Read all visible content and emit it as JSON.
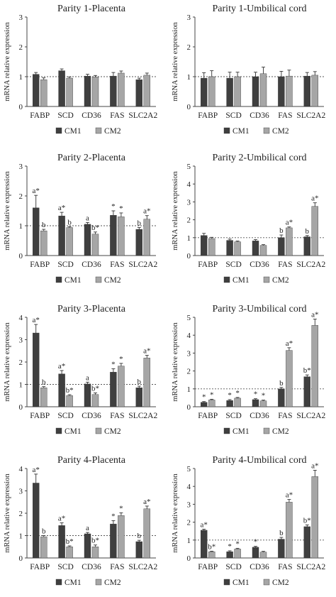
{
  "colors": {
    "CM1": "#3f3f3f",
    "CM2": "#a6a6a6",
    "axis": "#444444",
    "reference": "#555555"
  },
  "chart_data": [
    {
      "type": "bar",
      "title": "Parity 1-Placenta",
      "ylabel": "mRNA relative expression",
      "ylim": [
        0,
        3
      ],
      "yticks": [
        "0",
        "1",
        "2",
        "3"
      ],
      "reference_line": 1,
      "categories": [
        "FABP",
        "SCD",
        "CD36",
        "FAS",
        "SLC2A2"
      ],
      "legend": "bottom",
      "series": [
        {
          "name": "CM1",
          "values": [
            1.08,
            1.2,
            1.02,
            1.02,
            0.9
          ],
          "errors": [
            0.06,
            0.06,
            0.06,
            0.12,
            0.05
          ],
          "labels": [
            "",
            "",
            "",
            "",
            ""
          ]
        },
        {
          "name": "CM2",
          "values": [
            0.9,
            0.95,
            0.99,
            1.12,
            1.05
          ],
          "errors": [
            0.06,
            0.04,
            0.05,
            0.07,
            0.07
          ],
          "labels": [
            "",
            "",
            "",
            "",
            ""
          ]
        }
      ]
    },
    {
      "type": "bar",
      "title": "Parity 1-Umbilical cord",
      "ylabel": "mRNA relative expression",
      "ylim": [
        0,
        3
      ],
      "yticks": [
        "0",
        "1",
        "2",
        "3"
      ],
      "reference_line": 1,
      "categories": [
        "FABP",
        "SCD",
        "CD36",
        "FAS",
        "SLC2A2"
      ],
      "legend": "bottom",
      "series": [
        {
          "name": "CM1",
          "values": [
            0.95,
            0.95,
            1.0,
            1.0,
            1.02
          ],
          "errors": [
            0.18,
            0.2,
            0.15,
            0.18,
            0.12
          ],
          "labels": [
            "",
            "",
            "",
            "",
            ""
          ]
        },
        {
          "name": "CM2",
          "values": [
            1.0,
            1.0,
            1.1,
            1.02,
            1.05
          ],
          "errors": [
            0.2,
            0.15,
            0.22,
            0.2,
            0.12
          ],
          "labels": [
            "",
            "",
            "",
            "",
            ""
          ]
        }
      ]
    },
    {
      "type": "bar",
      "title": "Parity 2-Placenta",
      "ylabel": "mRNA relative expression",
      "ylim": [
        0,
        3
      ],
      "yticks": [
        "0",
        "1",
        "2",
        "3"
      ],
      "reference_line": 1,
      "categories": [
        "FABP",
        "SCD",
        "CD36",
        "FAS",
        "SLC2A2"
      ],
      "legend": "bottom",
      "series": [
        {
          "name": "CM1",
          "values": [
            1.6,
            1.33,
            1.05,
            1.35,
            0.88
          ],
          "errors": [
            0.42,
            0.12,
            0.06,
            0.15,
            0.06
          ],
          "labels": [
            "a*",
            "a*",
            "a",
            "*",
            "b"
          ]
        },
        {
          "name": "CM2",
          "values": [
            0.83,
            0.94,
            0.72,
            1.3,
            1.22
          ],
          "errors": [
            0.05,
            0.03,
            0.07,
            0.13,
            0.12
          ],
          "labels": [
            "b",
            "b",
            "b*",
            "*",
            "a*"
          ]
        }
      ]
    },
    {
      "type": "bar",
      "title": "Parity 2-Umbilical cord",
      "ylabel": "mRNA relative expression",
      "ylim": [
        0,
        5
      ],
      "yticks": [
        "0",
        "1",
        "2",
        "3",
        "4",
        "5"
      ],
      "reference_line": 1,
      "categories": [
        "FABP",
        "SCD",
        "CD36",
        "FAS",
        "SLC2A2"
      ],
      "legend": "bottom",
      "series": [
        {
          "name": "CM1",
          "values": [
            1.12,
            0.85,
            0.82,
            1.0,
            1.05
          ],
          "errors": [
            0.12,
            0.07,
            0.07,
            0.15,
            0.07
          ],
          "labels": [
            "",
            "",
            "",
            "b",
            "b"
          ]
        },
        {
          "name": "CM2",
          "values": [
            0.95,
            0.77,
            0.57,
            1.55,
            2.75
          ],
          "errors": [
            0.07,
            0.04,
            0.04,
            0.05,
            0.2
          ],
          "labels": [
            "",
            "",
            "",
            "a*",
            "a*"
          ]
        }
      ]
    },
    {
      "type": "bar",
      "title": "Parity 3-Placenta",
      "ylabel": "mRNA relative expression",
      "ylim": [
        0,
        4
      ],
      "yticks": [
        "0",
        "1",
        "2",
        "3",
        "4"
      ],
      "reference_line": 1,
      "categories": [
        "FABP",
        "SCD",
        "CD36",
        "FAS",
        "SLC2A2"
      ],
      "legend": "bottom",
      "series": [
        {
          "name": "CM1",
          "values": [
            3.3,
            1.47,
            1.02,
            1.55,
            0.85
          ],
          "errors": [
            0.38,
            0.15,
            0.08,
            0.15,
            0.07
          ],
          "labels": [
            "a*",
            "a*",
            "a",
            "*",
            "b"
          ]
        },
        {
          "name": "CM2",
          "values": [
            0.85,
            0.5,
            0.55,
            1.82,
            2.18
          ],
          "errors": [
            0.05,
            0.04,
            0.07,
            0.12,
            0.12
          ],
          "labels": [
            "b",
            "b*",
            "b*",
            "*",
            "a*"
          ]
        }
      ]
    },
    {
      "type": "bar",
      "title": "Parity 3-Umbilical cord",
      "ylabel": "mRNA relative expression",
      "ylim": [
        0,
        5
      ],
      "yticks": [
        "0",
        "1",
        "2",
        "3",
        "4",
        "5"
      ],
      "reference_line": 1,
      "categories": [
        "FABP",
        "SCD",
        "CD36",
        "FAS",
        "SLC2A2"
      ],
      "legend": "bottom",
      "series": [
        {
          "name": "CM1",
          "values": [
            0.25,
            0.35,
            0.4,
            1.0,
            1.68
          ],
          "errors": [
            0.04,
            0.05,
            0.05,
            0.08,
            0.1
          ],
          "labels": [
            "*",
            "*",
            "*",
            "b",
            "b*"
          ]
        },
        {
          "name": "CM2",
          "values": [
            0.38,
            0.48,
            0.33,
            3.15,
            4.55
          ],
          "errors": [
            0.04,
            0.04,
            0.04,
            0.15,
            0.35
          ],
          "labels": [
            "*",
            "*",
            "*",
            "a*",
            "a*"
          ]
        }
      ]
    },
    {
      "type": "bar",
      "title": "Parity 4-Placenta",
      "ylabel": "mRNA relative expression",
      "ylim": [
        0,
        4
      ],
      "yticks": [
        "0",
        "1",
        "2",
        "3",
        "4"
      ],
      "reference_line": 1,
      "categories": [
        "FABP",
        "SCD",
        "CD36",
        "FAS",
        "SLC2A2"
      ],
      "legend": "bottom",
      "series": [
        {
          "name": "CM1",
          "values": [
            3.35,
            1.45,
            1.08,
            1.52,
            0.73
          ],
          "errors": [
            0.4,
            0.12,
            0.06,
            0.15,
            0.06
          ],
          "labels": [
            "a*",
            "a*",
            "a",
            "*",
            "b"
          ]
        },
        {
          "name": "CM2",
          "values": [
            0.95,
            0.5,
            0.5,
            1.9,
            2.2
          ],
          "errors": [
            0.05,
            0.04,
            0.08,
            0.12,
            0.12
          ],
          "labels": [
            "b",
            "b*",
            "b*",
            "*",
            "a*"
          ]
        }
      ]
    },
    {
      "type": "bar",
      "title": "Parity 4-Umbilical cord",
      "ylabel": "mRNA relative expression",
      "ylim": [
        0,
        5
      ],
      "yticks": [
        "0",
        "1",
        "2",
        "3",
        "4",
        "5"
      ],
      "reference_line": 1,
      "categories": [
        "FABP",
        "SCD",
        "CD36",
        "FAS",
        "SLC2A2"
      ],
      "legend": "bottom",
      "series": [
        {
          "name": "CM1",
          "values": [
            1.55,
            0.35,
            0.6,
            1.05,
            1.75
          ],
          "errors": [
            0.06,
            0.05,
            0.05,
            0.1,
            0.1
          ],
          "labels": [
            "a*",
            "*",
            "*",
            "b",
            "b*"
          ]
        },
        {
          "name": "CM2",
          "values": [
            0.35,
            0.5,
            0.33,
            3.12,
            4.55
          ],
          "errors": [
            0.03,
            0.04,
            0.04,
            0.15,
            0.35
          ],
          "labels": [
            "b*",
            "*",
            "",
            "a*",
            "a*"
          ]
        }
      ]
    }
  ]
}
